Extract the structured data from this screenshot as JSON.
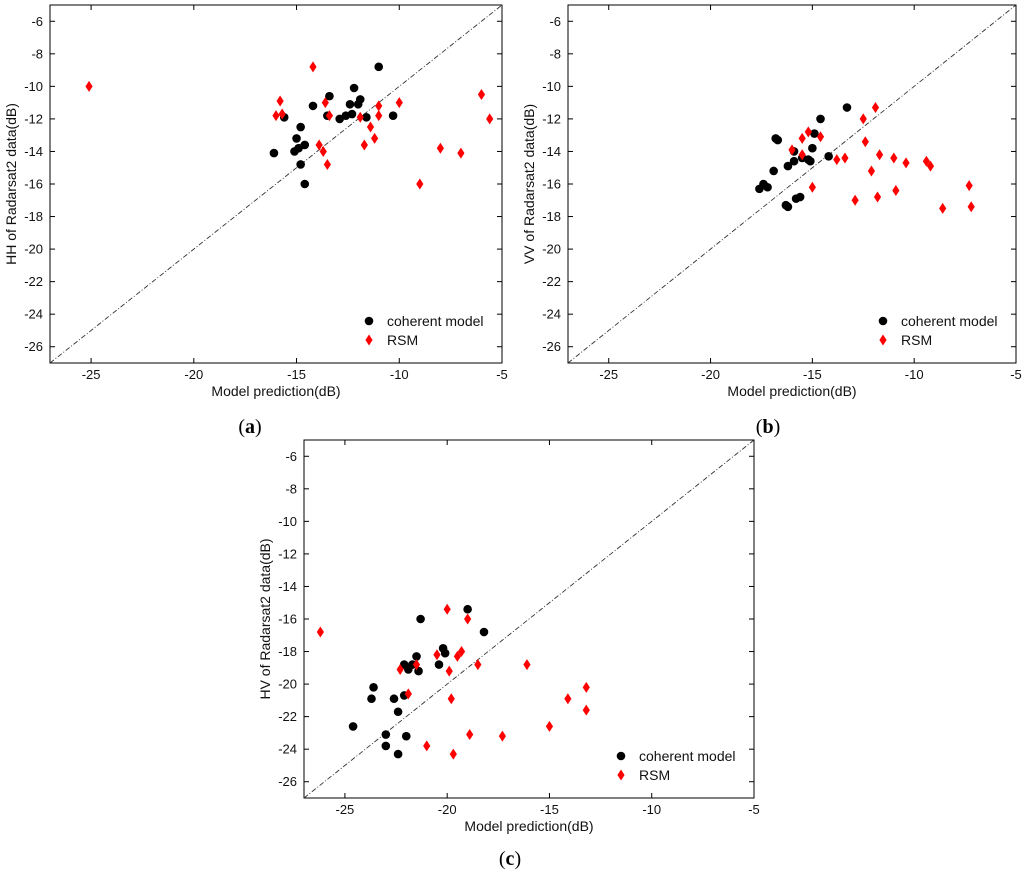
{
  "chart_data": [
    {
      "id": "a",
      "type": "scatter",
      "panel_label": "a",
      "xlabel": "Model prediction(dB)",
      "ylabel": "HH of Radarsat2 data(dB)",
      "xlim": [
        -27,
        -5
      ],
      "ylim": [
        -27,
        -5
      ],
      "xticks": [
        -25,
        -20,
        -15,
        -10,
        -5
      ],
      "yticks": [
        -6,
        -8,
        -10,
        -12,
        -14,
        -16,
        -18,
        -20,
        -22,
        -24,
        -26
      ],
      "reference_line": "1:1",
      "legend_position": "bottom-right",
      "series": [
        {
          "name": "coherent model",
          "marker": "circle",
          "color": "#000000",
          "points": [
            [
              -16.1,
              -14.1
            ],
            [
              -15.6,
              -11.9
            ],
            [
              -15.1,
              -14.0
            ],
            [
              -15.0,
              -13.2
            ],
            [
              -14.8,
              -12.5
            ],
            [
              -14.9,
              -13.8
            ],
            [
              -14.6,
              -13.6
            ],
            [
              -14.8,
              -14.8
            ],
            [
              -14.6,
              -16.0
            ],
            [
              -14.2,
              -11.2
            ],
            [
              -13.4,
              -10.6
            ],
            [
              -13.5,
              -11.8
            ],
            [
              -12.9,
              -12.0
            ],
            [
              -12.6,
              -11.8
            ],
            [
              -12.4,
              -11.1
            ],
            [
              -12.3,
              -11.7
            ],
            [
              -12.2,
              -10.1
            ],
            [
              -12.0,
              -11.1
            ],
            [
              -11.9,
              -10.8
            ],
            [
              -11.6,
              -11.9
            ],
            [
              -11.0,
              -8.8
            ],
            [
              -10.3,
              -11.8
            ]
          ]
        },
        {
          "name": "RSM",
          "marker": "diamond",
          "color": "#ff0000",
          "points": [
            [
              -25.1,
              -10.0
            ],
            [
              -16.0,
              -11.8
            ],
            [
              -15.8,
              -10.9
            ],
            [
              -15.7,
              -11.7
            ],
            [
              -14.2,
              -8.8
            ],
            [
              -13.9,
              -13.6
            ],
            [
              -13.7,
              -14.0
            ],
            [
              -13.6,
              -11.0
            ],
            [
              -13.5,
              -14.8
            ],
            [
              -13.4,
              -11.8
            ],
            [
              -11.9,
              -11.9
            ],
            [
              -11.7,
              -13.6
            ],
            [
              -11.4,
              -12.5
            ],
            [
              -11.2,
              -13.2
            ],
            [
              -11.0,
              -11.2
            ],
            [
              -11.0,
              -11.8
            ],
            [
              -10.0,
              -11.0
            ],
            [
              -9.0,
              -16.0
            ],
            [
              -8.0,
              -13.8
            ],
            [
              -7.0,
              -14.1
            ],
            [
              -6.0,
              -10.5
            ],
            [
              -5.6,
              -12.0
            ]
          ]
        }
      ]
    },
    {
      "id": "b",
      "type": "scatter",
      "panel_label": "b",
      "xlabel": "Model prediction(dB)",
      "ylabel": "VV of Radarsat2 data(dB)",
      "xlim": [
        -27,
        -5
      ],
      "ylim": [
        -27,
        -5
      ],
      "xticks": [
        -25,
        -20,
        -15,
        -10,
        -5
      ],
      "yticks": [
        -6,
        -8,
        -10,
        -12,
        -14,
        -16,
        -18,
        -20,
        -22,
        -24,
        -26
      ],
      "reference_line": "1:1",
      "legend_position": "bottom-right",
      "series": [
        {
          "name": "coherent model",
          "marker": "circle",
          "color": "#000000",
          "points": [
            [
              -17.6,
              -16.3
            ],
            [
              -17.4,
              -16.0
            ],
            [
              -17.2,
              -16.2
            ],
            [
              -16.9,
              -15.2
            ],
            [
              -16.8,
              -13.2
            ],
            [
              -16.7,
              -13.3
            ],
            [
              -16.3,
              -17.3
            ],
            [
              -16.2,
              -17.4
            ],
            [
              -16.2,
              -14.9
            ],
            [
              -15.9,
              -14.6
            ],
            [
              -15.9,
              -14.0
            ],
            [
              -15.8,
              -16.9
            ],
            [
              -15.6,
              -16.8
            ],
            [
              -15.5,
              -14.4
            ],
            [
              -15.2,
              -14.5
            ],
            [
              -15.1,
              -14.6
            ],
            [
              -15.0,
              -13.8
            ],
            [
              -14.9,
              -12.9
            ],
            [
              -14.6,
              -12.0
            ],
            [
              -14.2,
              -14.3
            ],
            [
              -13.3,
              -11.3
            ]
          ]
        },
        {
          "name": "RSM",
          "marker": "diamond",
          "color": "#ff0000",
          "points": [
            [
              -16.0,
              -13.9
            ],
            [
              -15.5,
              -13.2
            ],
            [
              -15.5,
              -14.2
            ],
            [
              -15.2,
              -12.8
            ],
            [
              -15.0,
              -16.2
            ],
            [
              -14.6,
              -13.1
            ],
            [
              -13.8,
              -14.5
            ],
            [
              -13.4,
              -14.4
            ],
            [
              -12.9,
              -17.0
            ],
            [
              -12.5,
              -12.0
            ],
            [
              -12.4,
              -13.4
            ],
            [
              -12.1,
              -15.2
            ],
            [
              -11.9,
              -11.3
            ],
            [
              -11.8,
              -16.8
            ],
            [
              -11.7,
              -14.2
            ],
            [
              -11.0,
              -14.4
            ],
            [
              -10.9,
              -16.4
            ],
            [
              -10.4,
              -14.7
            ],
            [
              -9.4,
              -14.6
            ],
            [
              -9.2,
              -14.9
            ],
            [
              -8.6,
              -17.5
            ],
            [
              -7.3,
              -16.1
            ],
            [
              -7.2,
              -17.4
            ]
          ]
        }
      ]
    },
    {
      "id": "c",
      "type": "scatter",
      "panel_label": "c",
      "xlabel": "Model prediction(dB)",
      "ylabel": "HV of Radarsat2 data(dB)",
      "xlim": [
        -27,
        -5
      ],
      "ylim": [
        -27,
        -5
      ],
      "xticks": [
        -25,
        -20,
        -15,
        -10,
        -5
      ],
      "yticks": [
        -6,
        -8,
        -10,
        -12,
        -14,
        -16,
        -18,
        -20,
        -22,
        -24,
        -26
      ],
      "reference_line": "1:1",
      "legend_position": "bottom-right",
      "series": [
        {
          "name": "coherent model",
          "marker": "circle",
          "color": "#000000",
          "points": [
            [
              -24.6,
              -22.6
            ],
            [
              -23.7,
              -20.9
            ],
            [
              -23.6,
              -20.2
            ],
            [
              -23.0,
              -23.1
            ],
            [
              -23.0,
              -23.8
            ],
            [
              -22.6,
              -20.9
            ],
            [
              -22.4,
              -21.7
            ],
            [
              -22.4,
              -24.3
            ],
            [
              -22.1,
              -18.8
            ],
            [
              -22.1,
              -20.7
            ],
            [
              -22.0,
              -23.2
            ],
            [
              -21.9,
              -19.1
            ],
            [
              -21.7,
              -18.8
            ],
            [
              -21.5,
              -18.3
            ],
            [
              -21.4,
              -19.2
            ],
            [
              -21.3,
              -16.0
            ],
            [
              -20.4,
              -18.8
            ],
            [
              -20.2,
              -17.8
            ],
            [
              -20.1,
              -18.1
            ],
            [
              -19.0,
              -15.4
            ],
            [
              -18.2,
              -16.8
            ]
          ]
        },
        {
          "name": "RSM",
          "marker": "diamond",
          "color": "#ff0000",
          "points": [
            [
              -26.2,
              -16.8
            ],
            [
              -22.3,
              -19.1
            ],
            [
              -21.9,
              -20.6
            ],
            [
              -21.5,
              -18.8
            ],
            [
              -21.0,
              -23.8
            ],
            [
              -20.5,
              -18.2
            ],
            [
              -20.0,
              -15.4
            ],
            [
              -19.9,
              -19.2
            ],
            [
              -19.8,
              -20.9
            ],
            [
              -19.7,
              -24.3
            ],
            [
              -19.5,
              -18.3
            ],
            [
              -19.3,
              -18.0
            ],
            [
              -19.0,
              -16.0
            ],
            [
              -18.9,
              -23.1
            ],
            [
              -18.5,
              -18.8
            ],
            [
              -17.3,
              -23.2
            ],
            [
              -16.1,
              -18.8
            ],
            [
              -15.0,
              -22.6
            ],
            [
              -14.1,
              -20.9
            ],
            [
              -13.2,
              -20.2
            ],
            [
              -13.2,
              -21.6
            ]
          ]
        }
      ]
    }
  ]
}
